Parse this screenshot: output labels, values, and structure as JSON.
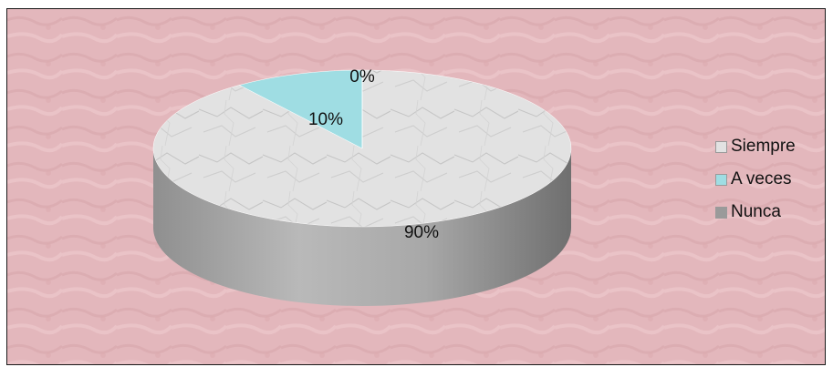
{
  "chart_data": {
    "type": "pie",
    "style": "3d",
    "categories": [
      "Siempre",
      "A veces",
      "Nunca"
    ],
    "values": [
      90,
      10,
      0
    ],
    "data_labels": [
      "90%",
      "10%",
      "0%"
    ],
    "title": "",
    "legend_position": "right",
    "colors": [
      "#e2e2e2",
      "#9fdde3",
      "#9a9a9a"
    ],
    "background_color": "#e3b7bc"
  }
}
